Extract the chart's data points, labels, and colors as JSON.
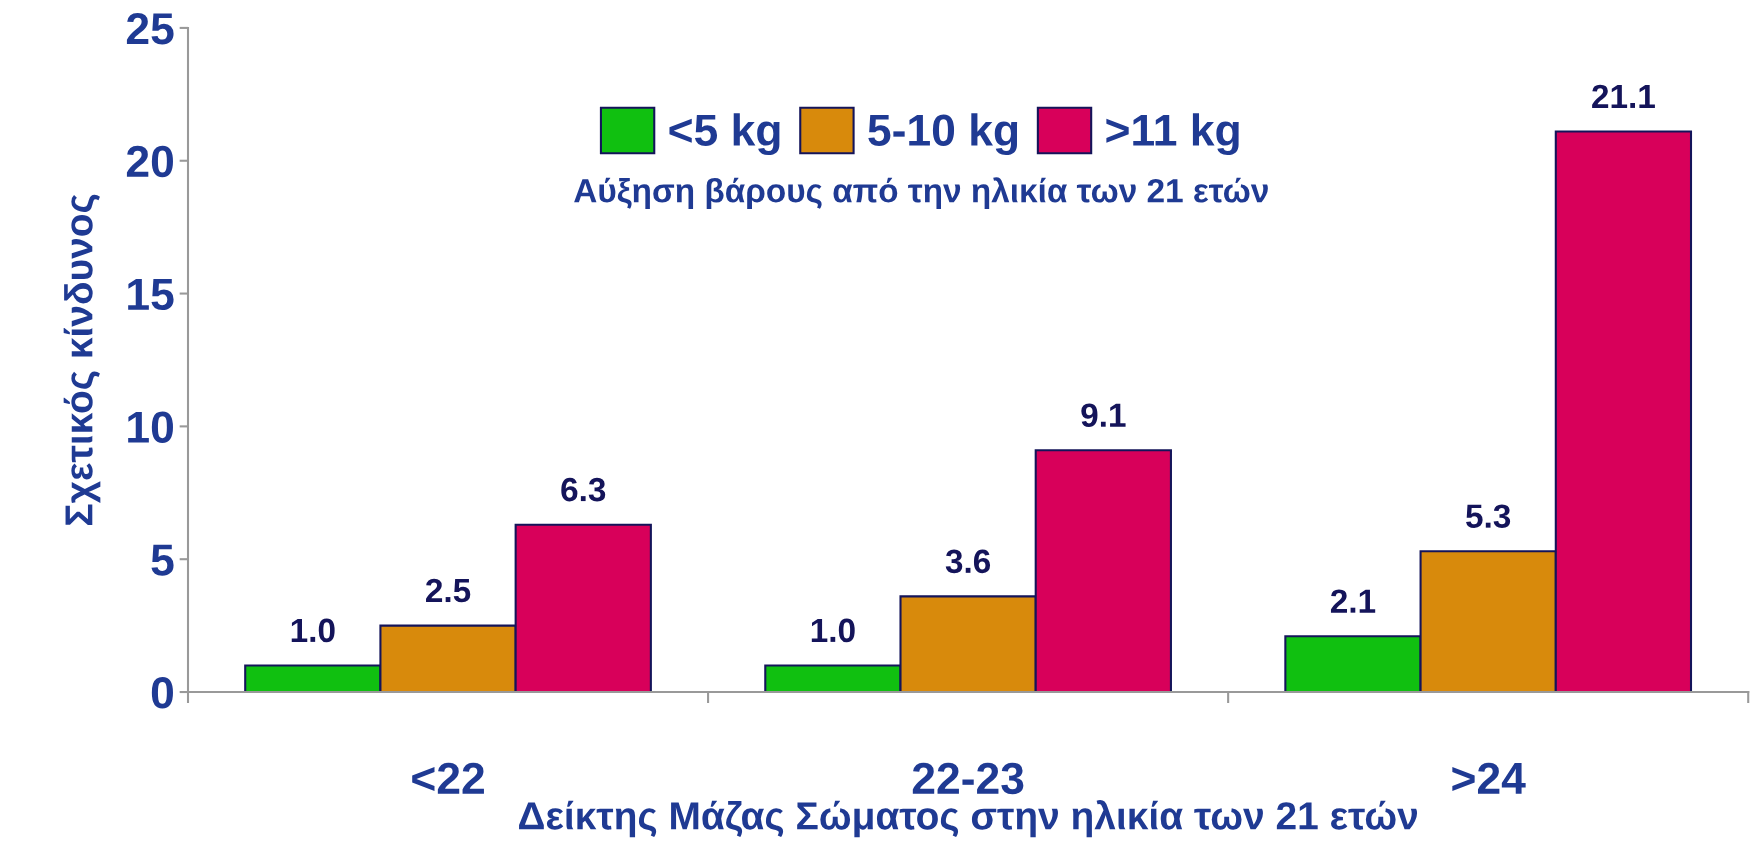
{
  "chart_data": {
    "type": "bar",
    "xlabel": "Δείκτης Μάζας Σώματος στην ηλικία των 21 ετών",
    "ylabel": "Σχετικός κίνδυνος",
    "legend_title": "Αύξηση βάρους από την ηλικία των 21 ετών",
    "categories": [
      "<22",
      "22-23",
      ">24"
    ],
    "series": [
      {
        "name": "<5 kg",
        "color": "#10c010",
        "values": [
          1.0,
          1.0,
          2.1
        ],
        "value_labels": [
          "1.0",
          "1.0",
          "2.1"
        ]
      },
      {
        "name": "5-10 kg",
        "color": "#d88a0c",
        "values": [
          2.5,
          3.6,
          5.3
        ],
        "value_labels": [
          "2.5",
          "3.6",
          "5.3"
        ]
      },
      {
        "name": ">11 kg",
        "color": "#d8005a",
        "values": [
          6.3,
          9.1,
          21.1
        ],
        "value_labels": [
          "6.3",
          "9.1",
          "21.1"
        ]
      }
    ],
    "ylim": [
      0,
      25
    ],
    "yticks": [
      0,
      5,
      10,
      15,
      20,
      25
    ],
    "grid": false,
    "legend": "top"
  }
}
